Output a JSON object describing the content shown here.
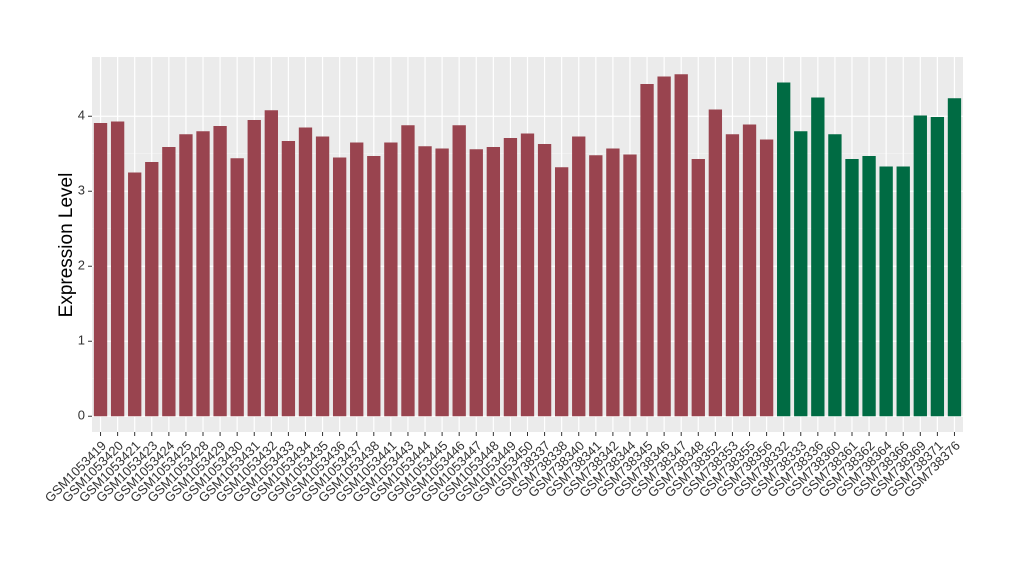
{
  "chart_data": {
    "type": "bar",
    "y_label": "Expression Level",
    "categories": [
      "GSM1053419",
      "GSM1053420",
      "GSM1053421",
      "GSM1053423",
      "GSM1053424",
      "GSM1053425",
      "GSM1053428",
      "GSM1053429",
      "GSM1053430",
      "GSM1053431",
      "GSM1053432",
      "GSM1053433",
      "GSM1053434",
      "GSM1053435",
      "GSM1053436",
      "GSM1053437",
      "GSM1053438",
      "GSM1053441",
      "GSM1053443",
      "GSM1053444",
      "GSM1053445",
      "GSM1053446",
      "GSM1053447",
      "GSM1053448",
      "GSM1053449",
      "GSM1053450",
      "GSM738337",
      "GSM738338",
      "GSM738340",
      "GSM738341",
      "GSM738342",
      "GSM738344",
      "GSM738345",
      "GSM738346",
      "GSM738347",
      "GSM738348",
      "GSM738352",
      "GSM738353",
      "GSM738355",
      "GSM738356",
      "GSM738332",
      "GSM738333",
      "GSM738336",
      "GSM738360",
      "GSM738361",
      "GSM738362",
      "GSM738364",
      "GSM738366",
      "GSM738369",
      "GSM738371",
      "GSM738376"
    ],
    "values": [
      3.91,
      3.93,
      3.25,
      3.39,
      3.59,
      3.76,
      3.8,
      3.87,
      3.44,
      3.95,
      4.08,
      3.67,
      3.85,
      3.73,
      3.45,
      3.65,
      3.47,
      3.65,
      3.88,
      3.6,
      3.57,
      3.88,
      3.56,
      3.59,
      3.71,
      3.77,
      3.63,
      3.32,
      3.73,
      3.48,
      3.57,
      3.49,
      4.43,
      4.53,
      4.56,
      3.43,
      4.09,
      3.76,
      3.89,
      3.69,
      4.45,
      3.8,
      4.25,
      3.76,
      3.43,
      3.47,
      3.33,
      3.33,
      4.01,
      3.99,
      4.24
    ],
    "colors": [
      "#99444f",
      "#99444f",
      "#99444f",
      "#99444f",
      "#99444f",
      "#99444f",
      "#99444f",
      "#99444f",
      "#99444f",
      "#99444f",
      "#99444f",
      "#99444f",
      "#99444f",
      "#99444f",
      "#99444f",
      "#99444f",
      "#99444f",
      "#99444f",
      "#99444f",
      "#99444f",
      "#99444f",
      "#99444f",
      "#99444f",
      "#99444f",
      "#99444f",
      "#99444f",
      "#99444f",
      "#99444f",
      "#99444f",
      "#99444f",
      "#99444f",
      "#99444f",
      "#99444f",
      "#99444f",
      "#99444f",
      "#99444f",
      "#99444f",
      "#99444f",
      "#99444f",
      "#99444f",
      "#006b43",
      "#006b43",
      "#006b43",
      "#006b43",
      "#006b43",
      "#006b43",
      "#006b43",
      "#006b43",
      "#006b43",
      "#006b43",
      "#006b43"
    ],
    "ylim": [
      -0.21,
      4.79
    ],
    "yticks": [
      0,
      1,
      2,
      3,
      4
    ],
    "grid": true
  }
}
